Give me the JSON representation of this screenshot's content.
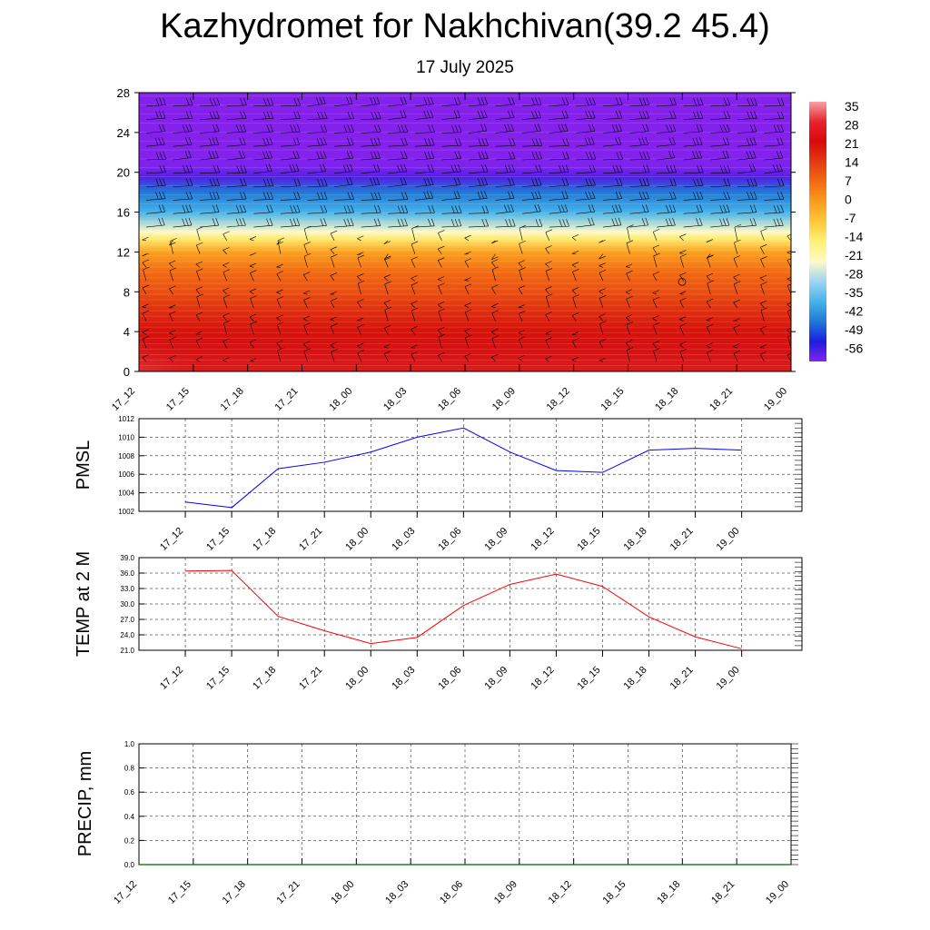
{
  "title": "Kazhydromet for Nakhchivan(39.2 45.4)",
  "subtitle": "17 July 2025",
  "chart_data": [
    {
      "type": "heatmap",
      "description_type": "time-height cross-section with wind barbs",
      "x_categories": [
        "17_12",
        "17_15",
        "17_18",
        "17_21",
        "18_00",
        "18_03",
        "18_06",
        "18_09",
        "18_12",
        "18_15",
        "18_18",
        "18_21",
        "19_00"
      ],
      "ylim": [
        0,
        28
      ],
      "yticks": [
        0,
        4,
        8,
        12,
        16,
        20,
        24,
        28
      ],
      "colorbar": {
        "labels": [
          "35",
          "28",
          "21",
          "14",
          "7",
          "0",
          "-7",
          "-14",
          "-21",
          "-28",
          "-35",
          "-42",
          "-49",
          "-56"
        ],
        "colors": [
          "#f7a1a6",
          "#e8232b",
          "#d70a0a",
          "#e43a10",
          "#f26a12",
          "#f99c1e",
          "#fdc83a",
          "#fff176",
          "#fff9c8",
          "#9fd4f2",
          "#45b3ea",
          "#2079d6",
          "#1b1fe0",
          "#8422ec"
        ]
      },
      "temperature_field": {
        "levels_height": [
          0,
          2,
          4,
          6,
          8,
          10,
          12,
          13.3,
          14,
          16,
          18,
          19.5,
          20.5,
          22,
          28
        ],
        "levels_value": [
          33,
          30,
          27,
          23,
          18,
          14,
          6,
          -8,
          -14,
          -28,
          -42,
          -54,
          -58,
          -62,
          -62
        ],
        "warm_cores": [
          {
            "x": "17_12",
            "height_top": 4,
            "value": 35
          },
          {
            "x": "18_09",
            "height_top": 2.5,
            "value": 34
          }
        ]
      },
      "wind_barbs": true
    },
    {
      "type": "line",
      "ylabel": "PMSL",
      "categories": [
        "17_12",
        "17_15",
        "17_18",
        "17_21",
        "18_00",
        "18_03",
        "18_06",
        "18_09",
        "18_12",
        "18_15",
        "18_18",
        "18_21",
        "19_00"
      ],
      "series": [
        {
          "values": [
            1003.0,
            1002.4,
            1006.6,
            1007.3,
            1008.4,
            1010.0,
            1011.0,
            1008.4,
            1006.4,
            1006.2,
            1008.6,
            1008.8,
            1008.6
          ],
          "color": "#0000ff"
        }
      ],
      "ylim": [
        1002,
        1012
      ],
      "yticks": [
        "1002",
        "1004",
        "1006",
        "1008",
        "1010",
        "1012"
      ],
      "grid": true
    },
    {
      "type": "line",
      "ylabel": "TEMP at 2 M",
      "categories": [
        "17_12",
        "17_15",
        "17_18",
        "17_21",
        "18_00",
        "18_03",
        "18_06",
        "18_09",
        "18_12",
        "18_15",
        "18_18",
        "18_21",
        "19_00"
      ],
      "series": [
        {
          "values": [
            36.4,
            36.5,
            27.6,
            24.8,
            22.3,
            23.5,
            29.7,
            33.8,
            35.8,
            33.4,
            27.5,
            23.6,
            21.3
          ],
          "color": "#ff0000"
        }
      ],
      "ylim": [
        21,
        39
      ],
      "yticks": [
        "21.0",
        "24.0",
        "27.0",
        "30.0",
        "33.0",
        "36.0",
        "39.0"
      ],
      "grid": true
    },
    {
      "type": "line",
      "ylabel": "PRECIP, mm",
      "categories": [
        "17_12",
        "17_15",
        "17_18",
        "17_21",
        "18_00",
        "18_03",
        "18_06",
        "18_09",
        "18_12",
        "18_15",
        "18_18",
        "18_21",
        "19_00"
      ],
      "series": [
        {
          "values": [
            0,
            0,
            0,
            0,
            0,
            0,
            0,
            0,
            0,
            0,
            0,
            0,
            0
          ],
          "color": "#006400"
        }
      ],
      "ylim": [
        0,
        1
      ],
      "yticks": [
        "0.0",
        "0.2",
        "0.4",
        "0.6",
        "0.8",
        "1.0"
      ],
      "grid": true
    }
  ]
}
